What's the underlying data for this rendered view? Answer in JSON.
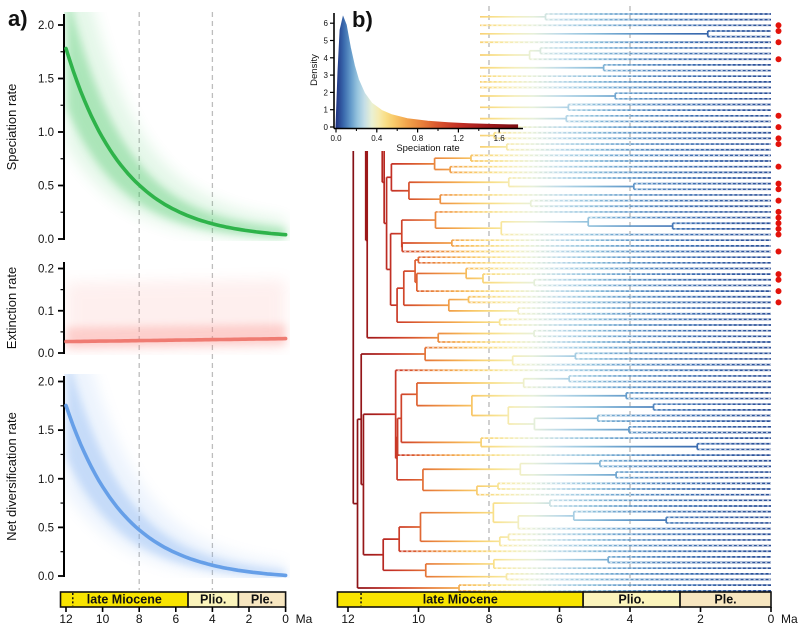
{
  "panel_a": {
    "label": "a)",
    "xtick_labels": [
      "12",
      "10",
      "8",
      "6",
      "4",
      "2",
      "0"
    ],
    "xtick_values": [
      12,
      10,
      8,
      6,
      4,
      2,
      0
    ],
    "x_unit": "Ma",
    "plots": [
      {
        "id": "speciation",
        "ylabel": "Speciation rate",
        "color": "#2eb34a",
        "band_color": "#35c257",
        "ytick_labels": [
          "2.0",
          "1.5",
          "1.0",
          "0.5",
          "0.0"
        ],
        "ytick_values": [
          2.0,
          1.5,
          1.0,
          0.5,
          0.0
        ],
        "y_minor": [
          1.75,
          1.25,
          0.75,
          0.25
        ]
      },
      {
        "id": "extinction",
        "ylabel": "Extinction rate",
        "color": "#ef7b72",
        "band_color": "#fa8a84",
        "ytick_labels": [
          "0.2",
          "0.1",
          "0.0"
        ],
        "ytick_values": [
          0.2,
          0.1,
          0.0
        ],
        "y_minor": [
          0.15,
          0.05
        ]
      },
      {
        "id": "netdiv",
        "ylabel": "Net diversification rate",
        "color": "#669fe8",
        "band_color": "#74a9f0",
        "ytick_labels": [
          "2.0",
          "1.5",
          "1.0",
          "0.5",
          "0.0"
        ],
        "ytick_values": [
          2.0,
          1.5,
          1.0,
          0.5,
          0.0
        ],
        "y_minor": [
          1.75,
          1.25,
          0.75,
          0.25
        ]
      }
    ]
  },
  "panel_b": {
    "label": "b)",
    "xtick_labels": [
      "12",
      "10",
      "8",
      "6",
      "4",
      "2",
      "0"
    ],
    "xtick_values": [
      12,
      10,
      8,
      6,
      4,
      2,
      0
    ],
    "x_unit": "Ma",
    "inset": {
      "ylabel": "Density",
      "xlabel": "Speciation rate",
      "ytick_labels": [
        "0",
        "1",
        "2",
        "3",
        "4",
        "5",
        "6"
      ],
      "ytick_values": [
        0,
        1,
        2,
        3,
        4,
        5,
        6
      ],
      "xtick_labels": [
        "0.0",
        "0.4",
        "0.8",
        "1.2",
        "1.6"
      ],
      "xtick_values": [
        0,
        0.4,
        0.8,
        1.2,
        1.6
      ],
      "x_minor": [
        0.2,
        0.6,
        1.0,
        1.4
      ]
    },
    "tree": {
      "n_tips": 103,
      "root_age": 11.85,
      "seed": 1337,
      "red_dot_rows": [
        2,
        3,
        5,
        8,
        18,
        20,
        22,
        23,
        27,
        30,
        31,
        33,
        35,
        36,
        37,
        38,
        39,
        42,
        46,
        47,
        49,
        51
      ],
      "red_dot_color": "#e3130b"
    }
  },
  "timescale": {
    "eras": [
      {
        "label": "late Miocene",
        "start": 12.3,
        "end": 5.33,
        "color": "#f8e400"
      },
      {
        "label": "Plio.",
        "start": 5.33,
        "end": 2.58,
        "color": "#fbf4bc"
      },
      {
        "label": "Ple.",
        "start": 2.58,
        "end": 0,
        "color": "#f7e6c0"
      }
    ],
    "epoch_boundary_dotted": 11.63
  },
  "curves": {
    "speciation": {
      "lambda0": 1.78,
      "decay": 0.3157
    },
    "extinction": {
      "mu0": 0.027,
      "slope": 0.000583
    }
  },
  "rate_colormap": [
    [
      0.0,
      "#1f3282"
    ],
    [
      0.04,
      "#2a4f97"
    ],
    [
      0.08,
      "#3b6cb0"
    ],
    [
      0.14,
      "#6097c8"
    ],
    [
      0.2,
      "#8fc0dc"
    ],
    [
      0.27,
      "#bedbe9"
    ],
    [
      0.34,
      "#e7f0d9"
    ],
    [
      0.4,
      "#f5eebb"
    ],
    [
      0.48,
      "#f9e18a"
    ],
    [
      0.58,
      "#f8c766"
    ],
    [
      0.7,
      "#f2a34b"
    ],
    [
      0.85,
      "#e77e3a"
    ],
    [
      1.0,
      "#d9552e"
    ],
    [
      1.2,
      "#c43126"
    ],
    [
      1.45,
      "#a31b1b"
    ],
    [
      1.7,
      "#861016"
    ],
    [
      1.82,
      "#7a0c12"
    ]
  ],
  "gridlines_at_ma": [
    8,
    4
  ],
  "chart_data": [
    {
      "type": "line",
      "id": "speciation_rate_through_time",
      "title": "",
      "xlabel": "Ma",
      "ylabel": "Speciation rate",
      "x": [
        12,
        11,
        10,
        9,
        8,
        7,
        6,
        5,
        4,
        3,
        2,
        1,
        0
      ],
      "y": [
        1.78,
        1.298,
        0.947,
        0.69,
        0.503,
        0.367,
        0.268,
        0.195,
        0.142,
        0.104,
        0.076,
        0.055,
        0.04
      ],
      "xlim": [
        12,
        0
      ],
      "ylim": [
        0,
        2.1
      ],
      "grid": "dashed vertical at 8 and 4 Ma",
      "legend": "none"
    },
    {
      "type": "line",
      "id": "extinction_rate_through_time",
      "title": "",
      "xlabel": "Ma",
      "ylabel": "Extinction rate",
      "x": [
        12,
        11,
        10,
        9,
        8,
        7,
        6,
        5,
        4,
        3,
        2,
        1,
        0
      ],
      "y": [
        0.027,
        0.028,
        0.028,
        0.029,
        0.029,
        0.03,
        0.031,
        0.031,
        0.032,
        0.032,
        0.033,
        0.033,
        0.034
      ],
      "xlim": [
        12,
        0
      ],
      "ylim": [
        0,
        0.22
      ],
      "grid": "dashed vertical at 8 and 4 Ma",
      "legend": "none"
    },
    {
      "type": "line",
      "id": "net_diversification_rate_through_time",
      "title": "",
      "xlabel": "Ma",
      "ylabel": "Net diversification rate",
      "x": [
        12,
        11,
        10,
        9,
        8,
        7,
        6,
        5,
        4,
        3,
        2,
        1,
        0
      ],
      "y": [
        1.753,
        1.27,
        0.919,
        0.661,
        0.474,
        0.337,
        0.238,
        0.164,
        0.11,
        0.072,
        0.043,
        0.022,
        0.006
      ],
      "xlim": [
        12,
        0
      ],
      "ylim": [
        0,
        2.1
      ],
      "grid": "dashed vertical at 8 and 4 Ma",
      "legend": "none"
    },
    {
      "type": "area",
      "id": "speciation_rate_density",
      "title": "",
      "xlabel": "Speciation rate",
      "ylabel": "Density",
      "x": [
        0,
        0.02,
        0.04,
        0.07,
        0.1,
        0.14,
        0.18,
        0.22,
        0.28,
        0.35,
        0.45,
        0.55,
        0.7,
        0.9,
        1.1,
        1.3,
        1.5,
        1.65,
        1.78
      ],
      "y": [
        0,
        3.2,
        5.6,
        6.35,
        5.9,
        4.6,
        3.55,
        2.75,
        1.95,
        1.38,
        0.95,
        0.7,
        0.48,
        0.33,
        0.25,
        0.19,
        0.15,
        0.13,
        0.12
      ],
      "xlim": [
        0,
        1.82
      ],
      "ylim": [
        0,
        6.5
      ],
      "fill": "rate colormap blue-yellow-red",
      "legend": "none"
    }
  ]
}
